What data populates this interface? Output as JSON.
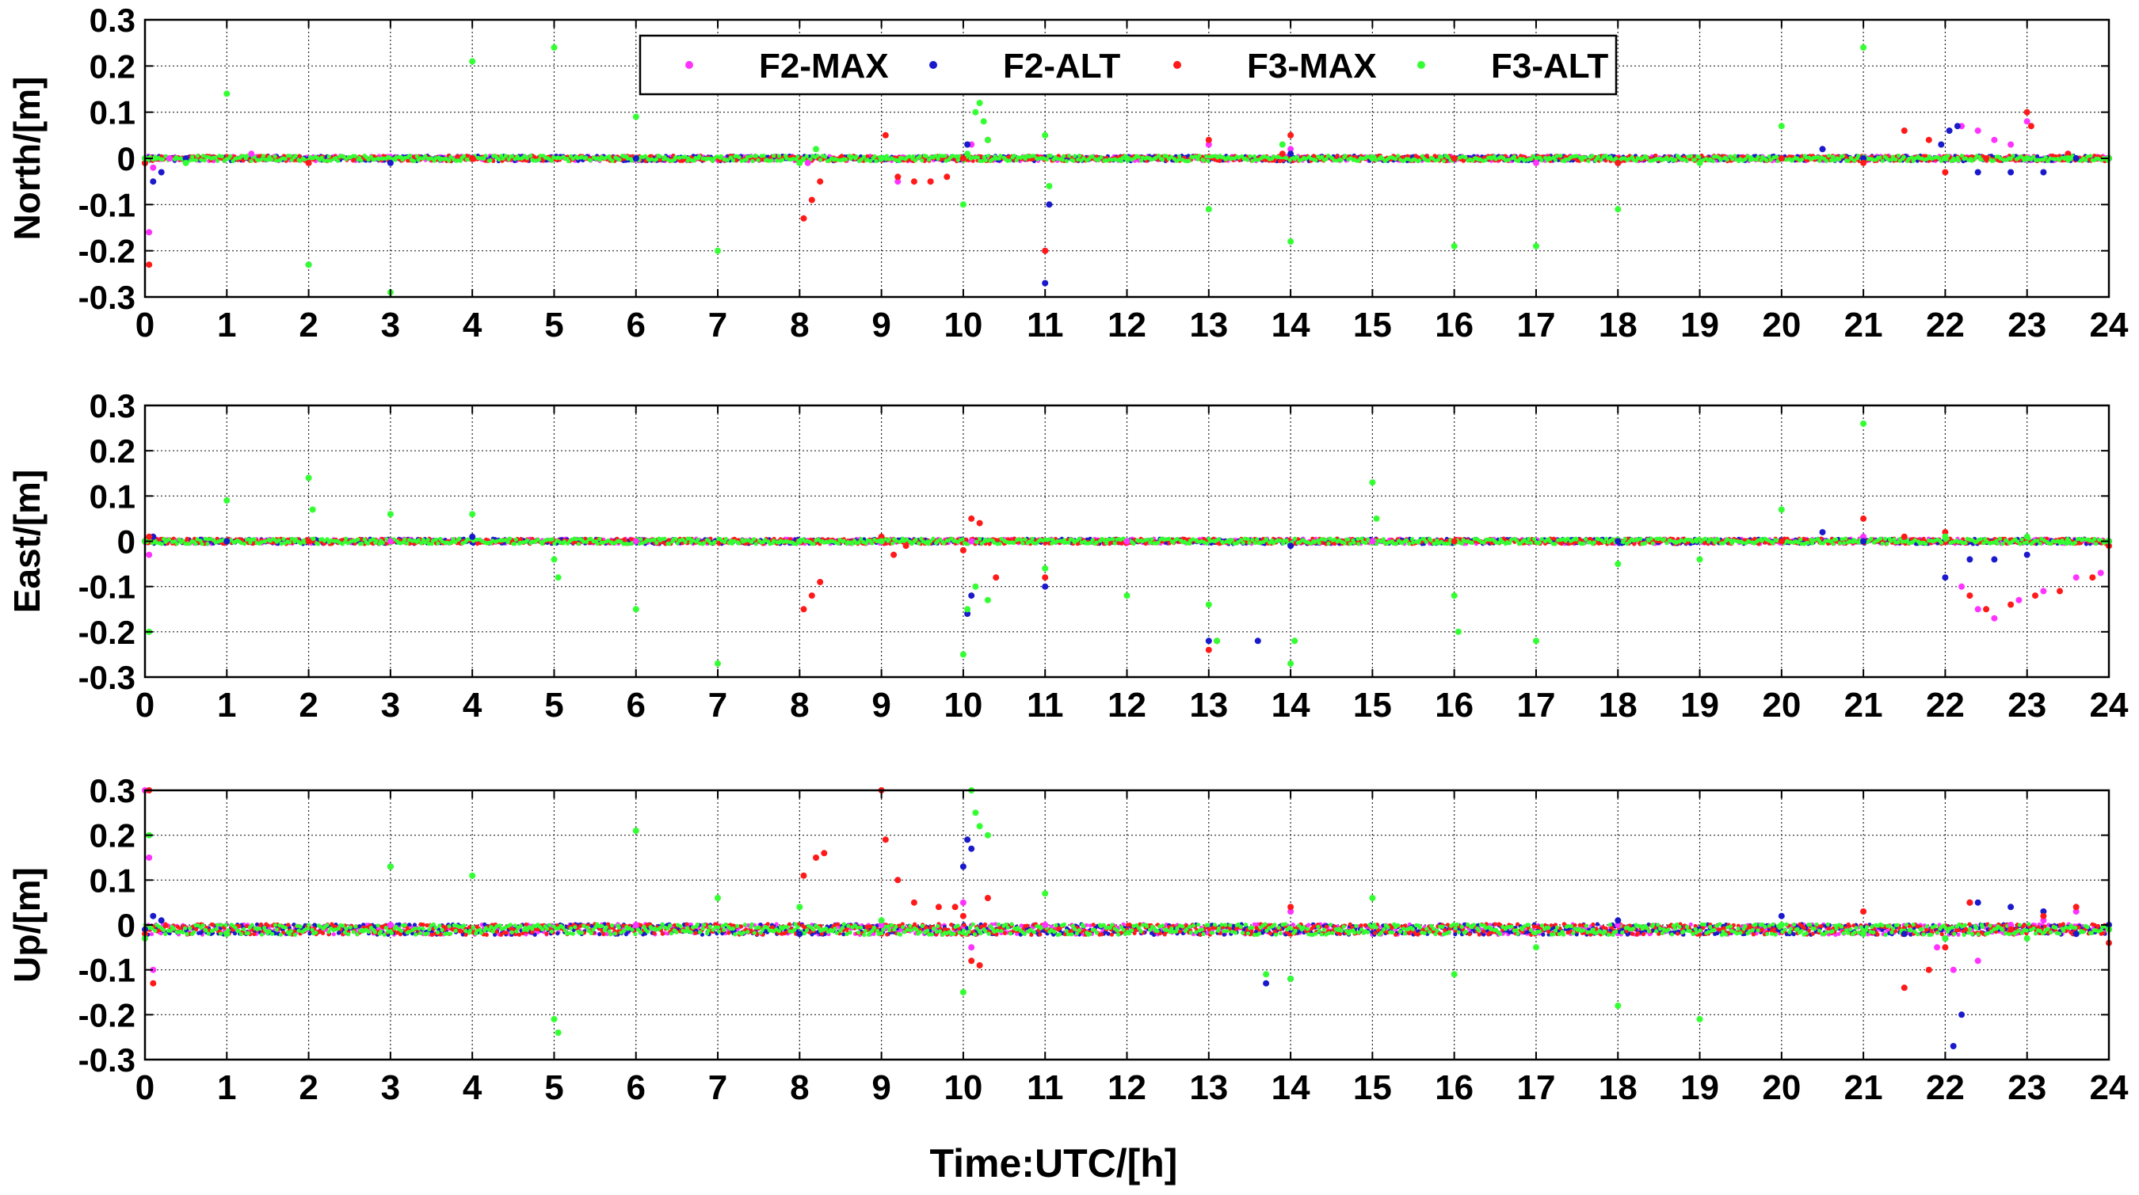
{
  "xlabel": "Time:UTC/[h]",
  "colors": {
    "F2-MAX": "#ff33ff",
    "F2-ALT": "#1a1acc",
    "F3-MAX": "#ff1a1a",
    "F3-ALT": "#33ff33"
  },
  "legend": {
    "placement": "top-center of first panel",
    "entries": [
      "F2-MAX",
      "F2-ALT",
      "F3-MAX",
      "F3-ALT"
    ]
  },
  "chart_data": [
    {
      "type": "scatter",
      "panel": "north",
      "ylabel": "North/[m]",
      "xlim": [
        0,
        24
      ],
      "ylim": [
        -0.3,
        0.3
      ],
      "xticks": [
        0,
        1,
        2,
        3,
        4,
        5,
        6,
        7,
        8,
        9,
        10,
        11,
        12,
        13,
        14,
        15,
        16,
        17,
        18,
        19,
        20,
        21,
        22,
        23,
        24
      ],
      "yticks": [
        0.3,
        0.2,
        0.1,
        0,
        -0.1,
        -0.2,
        -0.3
      ],
      "ytick_labels": [
        "0.3",
        "0.2",
        "0.1",
        "0",
        "-0.1",
        "-0.2",
        "-0.3"
      ],
      "grid": true,
      "series": [
        {
          "name": "F2-MAX",
          "x": [
            0,
            0.05,
            0.1,
            0.3,
            1.3,
            2,
            4,
            6,
            8.1,
            9.2,
            9.6,
            10.1,
            10.3,
            11,
            12,
            13,
            14,
            15,
            16,
            17,
            18,
            20,
            21,
            22.2,
            22.4,
            22.6,
            22.8,
            23,
            23.5,
            24
          ],
          "y": [
            -0.01,
            -0.16,
            -0.02,
            0,
            0.01,
            -0.01,
            0,
            0,
            -0.01,
            -0.05,
            -0.05,
            0.03,
            0.04,
            -0.2,
            0,
            0.03,
            0.02,
            0,
            0,
            -0.01,
            -0.01,
            0,
            0,
            0.07,
            0.06,
            0.04,
            0.03,
            0.08,
            0.01,
            0
          ]
        },
        {
          "name": "F2-ALT",
          "x": [
            0,
            0.1,
            0.2,
            0.5,
            2,
            3,
            6,
            9,
            10.05,
            11,
            11.05,
            12,
            14,
            16,
            18,
            20,
            20.5,
            21,
            21.95,
            22.05,
            22.15,
            22.4,
            22.8,
            23.2,
            23.6,
            24
          ],
          "y": [
            -0.01,
            -0.05,
            -0.03,
            0,
            -0.23,
            -0.01,
            0,
            0,
            0.03,
            -0.27,
            -0.1,
            0,
            0.01,
            0,
            -0.01,
            0,
            0.02,
            0,
            0.03,
            0.06,
            0.07,
            -0.03,
            -0.03,
            -0.03,
            0,
            0
          ]
        },
        {
          "name": "F3-MAX",
          "x": [
            0,
            0.05,
            2,
            4,
            8.05,
            8.15,
            8.25,
            9.05,
            9.2,
            9.4,
            9.6,
            9.8,
            10,
            10.3,
            11,
            13,
            13.9,
            14,
            16,
            18,
            20,
            21,
            21.5,
            21.8,
            22,
            22.5,
            23,
            23.05,
            23.5,
            24
          ],
          "y": [
            -0.01,
            -0.23,
            -0.01,
            0,
            -0.13,
            -0.09,
            -0.05,
            0.05,
            -0.04,
            -0.05,
            -0.05,
            -0.04,
            0,
            0.04,
            -0.2,
            0.04,
            0.01,
            0.05,
            0,
            -0.01,
            0,
            -0.01,
            0.06,
            0.04,
            -0.03,
            0,
            0.1,
            0.07,
            0.01,
            0
          ]
        },
        {
          "name": "F3-ALT",
          "x": [
            0,
            0.5,
            1,
            2,
            3,
            4,
            5,
            6,
            7,
            8,
            8.2,
            9,
            10,
            10.05,
            10.15,
            10.2,
            10.25,
            10.3,
            11,
            11.05,
            12,
            13,
            13.9,
            14,
            15,
            16,
            17,
            18,
            19,
            20,
            21,
            22,
            23,
            23.5,
            24
          ],
          "y": [
            0,
            -0.01,
            0.14,
            -0.23,
            -0.29,
            0.21,
            0.24,
            0.09,
            -0.2,
            -0.01,
            0.02,
            0,
            -0.1,
            0.01,
            0.1,
            0.12,
            0.08,
            0.04,
            0.05,
            -0.06,
            0,
            -0.11,
            0.03,
            -0.18,
            0,
            -0.19,
            -0.19,
            -0.11,
            -0.01,
            0.07,
            0.24,
            0,
            0,
            0,
            0
          ]
        }
      ]
    },
    {
      "type": "scatter",
      "panel": "east",
      "ylabel": "East/[m]",
      "xlim": [
        0,
        24
      ],
      "ylim": [
        -0.3,
        0.3
      ],
      "xticks": [
        0,
        1,
        2,
        3,
        4,
        5,
        6,
        7,
        8,
        9,
        10,
        11,
        12,
        13,
        14,
        15,
        16,
        17,
        18,
        19,
        20,
        21,
        22,
        23,
        24
      ],
      "yticks": [
        0.3,
        0.2,
        0.1,
        0,
        -0.1,
        -0.2,
        -0.3
      ],
      "ytick_labels": [
        "0.3",
        "0.2",
        "0.1",
        "0",
        "-0.1",
        "-0.2",
        "-0.3"
      ],
      "grid": true,
      "series": [
        {
          "name": "F2-MAX",
          "x": [
            0,
            0.05,
            1,
            3,
            6,
            9,
            10.1,
            12,
            15,
            18,
            21,
            22.2,
            22.4,
            22.6,
            22.9,
            23.2,
            23.6,
            23.9,
            24
          ],
          "y": [
            0,
            -0.03,
            0,
            0,
            0,
            0,
            0,
            0,
            0,
            0,
            0.01,
            -0.1,
            -0.15,
            -0.17,
            -0.13,
            -0.11,
            -0.08,
            -0.07,
            0
          ]
        },
        {
          "name": "F2-ALT",
          "x": [
            0,
            0.1,
            1,
            4,
            8,
            10.05,
            10.1,
            11,
            13,
            13.6,
            14,
            18,
            20,
            20.5,
            21,
            22,
            22.3,
            22.6,
            23,
            23.5,
            24
          ],
          "y": [
            0,
            0.01,
            0,
            0.01,
            0,
            -0.16,
            -0.12,
            -0.1,
            -0.22,
            -0.22,
            -0.01,
            0,
            0,
            0.02,
            0,
            -0.08,
            -0.04,
            -0.04,
            -0.03,
            0,
            0
          ]
        },
        {
          "name": "F3-MAX",
          "x": [
            0,
            0.05,
            2,
            8.05,
            8.15,
            8.25,
            9,
            9.15,
            9.3,
            10,
            10.1,
            10.2,
            10.4,
            11,
            13,
            13.1,
            16,
            20,
            21,
            21.5,
            22,
            22.3,
            22.5,
            22.8,
            23.1,
            23.4,
            23.8,
            24
          ],
          "y": [
            0,
            0.01,
            0,
            -0.15,
            -0.12,
            -0.09,
            0.01,
            -0.03,
            -0.01,
            -0.02,
            0.05,
            0.04,
            -0.08,
            -0.08,
            -0.24,
            -0.22,
            0,
            0,
            0.05,
            0.01,
            0.02,
            -0.12,
            -0.15,
            -0.14,
            -0.12,
            -0.11,
            -0.08,
            -0.01
          ]
        },
        {
          "name": "F3-ALT",
          "x": [
            0,
            0.05,
            1,
            2,
            2.05,
            3,
            4,
            5,
            5.05,
            6,
            7,
            8,
            9,
            10,
            10.05,
            10.15,
            10.3,
            11,
            12,
            13,
            13.1,
            14,
            14.05,
            15,
            15.05,
            16,
            16.05,
            17,
            18,
            19,
            20,
            21,
            22,
            23,
            23.5,
            24
          ],
          "y": [
            0,
            -0.2,
            0.09,
            0.14,
            0.07,
            0.06,
            0.06,
            -0.04,
            -0.08,
            -0.15,
            -0.27,
            0,
            0,
            -0.25,
            -0.15,
            -0.1,
            -0.13,
            -0.06,
            -0.12,
            -0.14,
            -0.22,
            -0.27,
            -0.22,
            0.13,
            0.05,
            -0.12,
            -0.2,
            -0.22,
            -0.05,
            -0.04,
            0.07,
            0.26,
            0.01,
            0.01,
            0,
            0
          ]
        }
      ]
    },
    {
      "type": "scatter",
      "panel": "up",
      "ylabel": "Up/[m]",
      "xlim": [
        0,
        24
      ],
      "ylim": [
        -0.3,
        0.3
      ],
      "xticks": [
        0,
        1,
        2,
        3,
        4,
        5,
        6,
        7,
        8,
        9,
        10,
        11,
        12,
        13,
        14,
        15,
        16,
        17,
        18,
        19,
        20,
        21,
        22,
        23,
        24
      ],
      "yticks": [
        0.3,
        0.2,
        0.1,
        0,
        -0.1,
        -0.2,
        -0.3
      ],
      "ytick_labels": [
        "0.3",
        "0.2",
        "0.1",
        "0",
        "-0.1",
        "-0.2",
        "-0.3"
      ],
      "grid": true,
      "series": [
        {
          "name": "F2-MAX",
          "x": [
            0,
            0.05,
            0.1,
            3,
            6,
            9,
            10,
            10.1,
            11,
            14,
            18,
            21.9,
            22.1,
            22.4,
            22.8,
            23.2,
            23.6,
            24
          ],
          "y": [
            0.3,
            0.15,
            -0.1,
            0,
            0,
            0,
            0.05,
            -0.05,
            0,
            0.03,
            0,
            -0.05,
            -0.1,
            -0.08,
            0,
            0.01,
            0.03,
            -0.01
          ]
        },
        {
          "name": "F2-ALT",
          "x": [
            0,
            0.1,
            0.2,
            3,
            8,
            10,
            10.05,
            10.1,
            13.7,
            14,
            18,
            20,
            21.5,
            22,
            22.1,
            22.2,
            22.3,
            22.4,
            22.8,
            23.2,
            23.6,
            24
          ],
          "y": [
            -0.01,
            0.02,
            0.01,
            0.13,
            -0.02,
            0.13,
            0.19,
            0.17,
            -0.13,
            -0.12,
            0.01,
            0.02,
            -0.02,
            -0.03,
            -0.27,
            -0.2,
            0.05,
            0.05,
            0.04,
            0.03,
            -0.02,
            0
          ]
        },
        {
          "name": "F3-MAX",
          "x": [
            0,
            0.05,
            0.1,
            8.05,
            8.2,
            8.3,
            9,
            9.05,
            9.2,
            9.4,
            9.7,
            9.9,
            10,
            10.1,
            10.2,
            10.3,
            14,
            21,
            21.5,
            21.8,
            22,
            22.3,
            22.8,
            23.2,
            23.6,
            24
          ],
          "y": [
            -0.02,
            0.3,
            -0.13,
            0.11,
            0.15,
            0.16,
            0.3,
            0.19,
            0.1,
            0.05,
            0.04,
            0.04,
            0.02,
            -0.08,
            -0.09,
            0.06,
            0.04,
            0.03,
            -0.14,
            -0.1,
            -0.05,
            0.05,
            -0.01,
            0.02,
            0.04,
            -0.04
          ]
        },
        {
          "name": "F3-ALT",
          "x": [
            0,
            0.05,
            1,
            3,
            4,
            5,
            5.05,
            6,
            7,
            8,
            9,
            10,
            10.1,
            10.15,
            10.2,
            10.3,
            11,
            13.7,
            14,
            15,
            16,
            17,
            18,
            19,
            20,
            21,
            22,
            23,
            24
          ],
          "y": [
            -0.03,
            0.2,
            -0.02,
            0.13,
            0.11,
            -0.21,
            -0.24,
            0.21,
            0.06,
            0.04,
            0.01,
            -0.15,
            0.3,
            0.25,
            0.22,
            0.2,
            0.07,
            -0.11,
            -0.12,
            0.06,
            -0.11,
            -0.05,
            -0.18,
            -0.21,
            0,
            -0.02,
            -0.03,
            -0.03,
            -0.01
          ]
        }
      ]
    }
  ]
}
